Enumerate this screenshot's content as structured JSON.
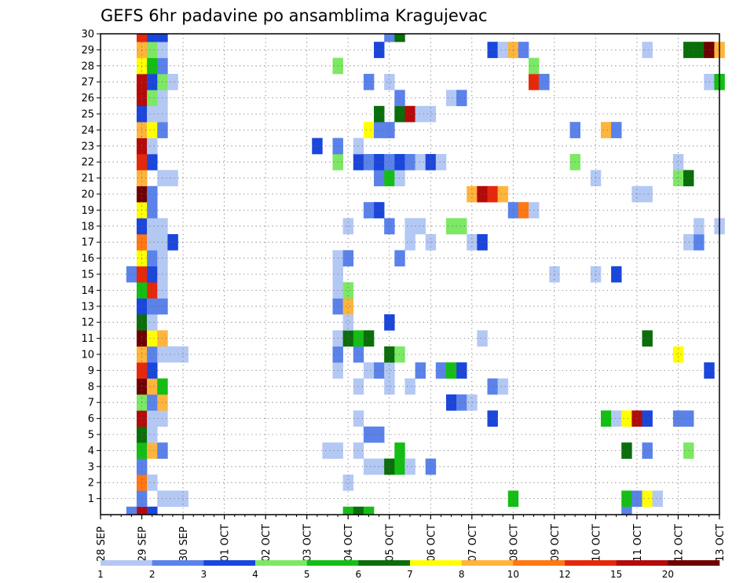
{
  "chart_data": {
    "type": "heatmap",
    "title": "GEFS 6hr padavine po ansamblima Kragujevac",
    "x_tick_labels": [
      "28 SEP",
      "29 SEP",
      "30 SEP",
      "01 OCT",
      "02 OCT",
      "03 OCT",
      "04 OCT",
      "05 OCT",
      "06 OCT",
      "07 OCT",
      "08 OCT",
      "09 OCT",
      "10 OCT",
      "11 OCT",
      "12 OCT",
      "13 OCT"
    ],
    "y_tick_labels": [
      "1",
      "2",
      "3",
      "4",
      "5",
      "6",
      "7",
      "8",
      "9",
      "10",
      "11",
      "12",
      "13",
      "14",
      "15",
      "16",
      "17",
      "18",
      "19",
      "20",
      "21",
      "22",
      "23",
      "24",
      "25",
      "26",
      "27",
      "28",
      "29",
      "30"
    ],
    "x_range_days": [
      0,
      15
    ],
    "y_range": [
      0,
      30
    ],
    "grid": true,
    "legend_placement": "bottom",
    "legend": {
      "labels": [
        "1",
        "2",
        "3",
        "4",
        "5",
        "6",
        "7",
        "8",
        "10",
        "12",
        "15",
        "20"
      ],
      "colors": [
        "#b4c8f4",
        "#5a82ea",
        "#1a46dc",
        "#7ce864",
        "#14be14",
        "#0a6e0a",
        "#ffff00",
        "#ffb43c",
        "#ff7814",
        "#e6280a",
        "#b40a0a",
        "#6e0000"
      ]
    },
    "cells": [
      {
        "m": 0,
        "d": 1.0,
        "c": 10
      },
      {
        "m": 0,
        "d": 1.25,
        "c": 2
      },
      {
        "m": 0,
        "d": 0.75,
        "c": 1
      },
      {
        "m": 0,
        "d": 6.0,
        "c": 4
      },
      {
        "m": 0,
        "d": 6.25,
        "c": 5
      },
      {
        "m": 0,
        "d": 6.5,
        "c": 4
      },
      {
        "m": 0,
        "d": 12.75,
        "c": 1
      },
      {
        "m": 1,
        "d": 1.0,
        "c": 1
      },
      {
        "m": 1,
        "d": 1.5,
        "c": 0
      },
      {
        "m": 1,
        "d": 1.75,
        "c": 0
      },
      {
        "m": 1,
        "d": 2.0,
        "c": 0
      },
      {
        "m": 1,
        "d": 10.0,
        "c": 4
      },
      {
        "m": 1,
        "d": 12.75,
        "c": 4
      },
      {
        "m": 1,
        "d": 13.0,
        "c": 1
      },
      {
        "m": 1,
        "d": 13.25,
        "c": 6
      },
      {
        "m": 1,
        "d": 13.5,
        "c": 0
      },
      {
        "m": 2,
        "d": 1.0,
        "c": 8
      },
      {
        "m": 2,
        "d": 1.25,
        "c": 0
      },
      {
        "m": 2,
        "d": 6.0,
        "c": 0
      },
      {
        "m": 3,
        "d": 1.0,
        "c": 1
      },
      {
        "m": 3,
        "d": 6.5,
        "c": 0
      },
      {
        "m": 3,
        "d": 6.75,
        "c": 0
      },
      {
        "m": 3,
        "d": 7.0,
        "c": 5
      },
      {
        "m": 3,
        "d": 7.25,
        "c": 4
      },
      {
        "m": 3,
        "d": 7.5,
        "c": 0
      },
      {
        "m": 3,
        "d": 8.0,
        "c": 1
      },
      {
        "m": 4,
        "d": 1.0,
        "c": 4
      },
      {
        "m": 4,
        "d": 1.25,
        "c": 7
      },
      {
        "m": 4,
        "d": 1.5,
        "c": 1
      },
      {
        "m": 4,
        "d": 5.5,
        "c": 0
      },
      {
        "m": 4,
        "d": 5.75,
        "c": 0
      },
      {
        "m": 4,
        "d": 6.25,
        "c": 0
      },
      {
        "m": 4,
        "d": 7.25,
        "c": 4
      },
      {
        "m": 4,
        "d": 12.75,
        "c": 5
      },
      {
        "m": 4,
        "d": 13.25,
        "c": 1
      },
      {
        "m": 4,
        "d": 14.25,
        "c": 3
      },
      {
        "m": 5,
        "d": 1.0,
        "c": 5
      },
      {
        "m": 5,
        "d": 1.25,
        "c": 0
      },
      {
        "m": 5,
        "d": 6.5,
        "c": 1
      },
      {
        "m": 5,
        "d": 6.75,
        "c": 1
      },
      {
        "m": 6,
        "d": 1.0,
        "c": 10
      },
      {
        "m": 6,
        "d": 1.25,
        "c": 0
      },
      {
        "m": 6,
        "d": 1.5,
        "c": 0
      },
      {
        "m": 6,
        "d": 6.25,
        "c": 0
      },
      {
        "m": 6,
        "d": 9.5,
        "c": 2
      },
      {
        "m": 6,
        "d": 12.25,
        "c": 4
      },
      {
        "m": 6,
        "d": 12.5,
        "c": 0
      },
      {
        "m": 6,
        "d": 12.75,
        "c": 6
      },
      {
        "m": 6,
        "d": 13.0,
        "c": 10
      },
      {
        "m": 6,
        "d": 13.25,
        "c": 2
      },
      {
        "m": 6,
        "d": 14.0,
        "c": 1
      },
      {
        "m": 6,
        "d": 14.25,
        "c": 1
      },
      {
        "m": 7,
        "d": 1.0,
        "c": 3
      },
      {
        "m": 7,
        "d": 1.25,
        "c": 1
      },
      {
        "m": 7,
        "d": 1.5,
        "c": 7
      },
      {
        "m": 7,
        "d": 8.5,
        "c": 2
      },
      {
        "m": 7,
        "d": 8.75,
        "c": 1
      },
      {
        "m": 7,
        "d": 9.0,
        "c": 0
      },
      {
        "m": 8,
        "d": 1.0,
        "c": 11
      },
      {
        "m": 8,
        "d": 1.25,
        "c": 7
      },
      {
        "m": 8,
        "d": 1.5,
        "c": 4
      },
      {
        "m": 8,
        "d": 6.25,
        "c": 0
      },
      {
        "m": 8,
        "d": 7.0,
        "c": 0
      },
      {
        "m": 8,
        "d": 7.5,
        "c": 0
      },
      {
        "m": 8,
        "d": 9.5,
        "c": 1
      },
      {
        "m": 8,
        "d": 9.75,
        "c": 0
      },
      {
        "m": 9,
        "d": 1.0,
        "c": 9
      },
      {
        "m": 9,
        "d": 1.25,
        "c": 2
      },
      {
        "m": 9,
        "d": 5.75,
        "c": 0
      },
      {
        "m": 9,
        "d": 6.5,
        "c": 0
      },
      {
        "m": 9,
        "d": 6.75,
        "c": 1
      },
      {
        "m": 9,
        "d": 7.0,
        "c": 0
      },
      {
        "m": 9,
        "d": 7.75,
        "c": 1
      },
      {
        "m": 9,
        "d": 8.25,
        "c": 1
      },
      {
        "m": 9,
        "d": 8.5,
        "c": 4
      },
      {
        "m": 9,
        "d": 8.75,
        "c": 2
      },
      {
        "m": 9,
        "d": 14.75,
        "c": 2
      },
      {
        "m": 10,
        "d": 1.0,
        "c": 7
      },
      {
        "m": 10,
        "d": 1.25,
        "c": 1
      },
      {
        "m": 10,
        "d": 1.5,
        "c": 0
      },
      {
        "m": 10,
        "d": 1.75,
        "c": 0
      },
      {
        "m": 10,
        "d": 2.0,
        "c": 0
      },
      {
        "m": 10,
        "d": 5.75,
        "c": 1
      },
      {
        "m": 10,
        "d": 6.25,
        "c": 1
      },
      {
        "m": 10,
        "d": 7.0,
        "c": 5
      },
      {
        "m": 10,
        "d": 7.25,
        "c": 3
      },
      {
        "m": 10,
        "d": 14.0,
        "c": 6
      },
      {
        "m": 11,
        "d": 1.0,
        "c": 11
      },
      {
        "m": 11,
        "d": 1.25,
        "c": 6
      },
      {
        "m": 11,
        "d": 1.5,
        "c": 7
      },
      {
        "m": 11,
        "d": 5.75,
        "c": 0
      },
      {
        "m": 11,
        "d": 6.0,
        "c": 5
      },
      {
        "m": 11,
        "d": 6.25,
        "c": 4
      },
      {
        "m": 11,
        "d": 6.5,
        "c": 5
      },
      {
        "m": 11,
        "d": 9.25,
        "c": 0
      },
      {
        "m": 11,
        "d": 13.25,
        "c": 5
      },
      {
        "m": 12,
        "d": 1.0,
        "c": 5
      },
      {
        "m": 12,
        "d": 1.25,
        "c": 0
      },
      {
        "m": 12,
        "d": 6.0,
        "c": 0
      },
      {
        "m": 12,
        "d": 7.0,
        "c": 2
      },
      {
        "m": 13,
        "d": 1.0,
        "c": 2
      },
      {
        "m": 13,
        "d": 1.25,
        "c": 1
      },
      {
        "m": 13,
        "d": 1.5,
        "c": 1
      },
      {
        "m": 13,
        "d": 5.75,
        "c": 1
      },
      {
        "m": 13,
        "d": 6.0,
        "c": 7
      },
      {
        "m": 14,
        "d": 1.0,
        "c": 4
      },
      {
        "m": 14,
        "d": 1.25,
        "c": 9
      },
      {
        "m": 14,
        "d": 1.5,
        "c": 0
      },
      {
        "m": 14,
        "d": 5.75,
        "c": 0
      },
      {
        "m": 14,
        "d": 6.0,
        "c": 3
      },
      {
        "m": 15,
        "d": 0.75,
        "c": 1
      },
      {
        "m": 15,
        "d": 1.0,
        "c": 9
      },
      {
        "m": 15,
        "d": 1.25,
        "c": 2
      },
      {
        "m": 15,
        "d": 1.5,
        "c": 0
      },
      {
        "m": 15,
        "d": 5.75,
        "c": 0
      },
      {
        "m": 15,
        "d": 11.0,
        "c": 0
      },
      {
        "m": 15,
        "d": 12.0,
        "c": 0
      },
      {
        "m": 15,
        "d": 12.5,
        "c": 2
      },
      {
        "m": 16,
        "d": 1.0,
        "c": 6
      },
      {
        "m": 16,
        "d": 1.25,
        "c": 1
      },
      {
        "m": 16,
        "d": 1.5,
        "c": 0
      },
      {
        "m": 16,
        "d": 5.75,
        "c": 0
      },
      {
        "m": 16,
        "d": 6.0,
        "c": 1
      },
      {
        "m": 16,
        "d": 7.25,
        "c": 1
      },
      {
        "m": 17,
        "d": 1.0,
        "c": 8
      },
      {
        "m": 17,
        "d": 1.25,
        "c": 0
      },
      {
        "m": 17,
        "d": 1.5,
        "c": 0
      },
      {
        "m": 17,
        "d": 1.75,
        "c": 2
      },
      {
        "m": 17,
        "d": 7.5,
        "c": 0
      },
      {
        "m": 17,
        "d": 8.0,
        "c": 0
      },
      {
        "m": 17,
        "d": 9.0,
        "c": 0
      },
      {
        "m": 17,
        "d": 9.25,
        "c": 2
      },
      {
        "m": 17,
        "d": 14.25,
        "c": 0
      },
      {
        "m": 17,
        "d": 14.5,
        "c": 1
      },
      {
        "m": 18,
        "d": 1.0,
        "c": 2
      },
      {
        "m": 18,
        "d": 1.25,
        "c": 0
      },
      {
        "m": 18,
        "d": 1.5,
        "c": 0
      },
      {
        "m": 18,
        "d": 6.0,
        "c": 0
      },
      {
        "m": 18,
        "d": 7.0,
        "c": 1
      },
      {
        "m": 18,
        "d": 7.5,
        "c": 0
      },
      {
        "m": 18,
        "d": 7.75,
        "c": 0
      },
      {
        "m": 18,
        "d": 8.5,
        "c": 3
      },
      {
        "m": 18,
        "d": 8.75,
        "c": 3
      },
      {
        "m": 18,
        "d": 14.5,
        "c": 0
      },
      {
        "m": 18,
        "d": 15.0,
        "c": 0
      },
      {
        "m": 19,
        "d": 1.0,
        "c": 6
      },
      {
        "m": 19,
        "d": 1.25,
        "c": 1
      },
      {
        "m": 19,
        "d": 6.5,
        "c": 1
      },
      {
        "m": 19,
        "d": 6.75,
        "c": 2
      },
      {
        "m": 19,
        "d": 10.0,
        "c": 1
      },
      {
        "m": 19,
        "d": 10.25,
        "c": 8
      },
      {
        "m": 19,
        "d": 10.5,
        "c": 0
      },
      {
        "m": 20,
        "d": 1.0,
        "c": 11
      },
      {
        "m": 20,
        "d": 1.25,
        "c": 1
      },
      {
        "m": 20,
        "d": 9.0,
        "c": 7
      },
      {
        "m": 20,
        "d": 9.25,
        "c": 10
      },
      {
        "m": 20,
        "d": 9.5,
        "c": 9
      },
      {
        "m": 20,
        "d": 9.75,
        "c": 7
      },
      {
        "m": 20,
        "d": 13.0,
        "c": 0
      },
      {
        "m": 20,
        "d": 13.25,
        "c": 0
      },
      {
        "m": 21,
        "d": 1.0,
        "c": 7
      },
      {
        "m": 21,
        "d": 1.5,
        "c": 0
      },
      {
        "m": 21,
        "d": 1.75,
        "c": 0
      },
      {
        "m": 21,
        "d": 6.75,
        "c": 1
      },
      {
        "m": 21,
        "d": 7.0,
        "c": 4
      },
      {
        "m": 21,
        "d": 7.25,
        "c": 0
      },
      {
        "m": 21,
        "d": 12.0,
        "c": 0
      },
      {
        "m": 21,
        "d": 14.0,
        "c": 3
      },
      {
        "m": 21,
        "d": 14.25,
        "c": 5
      },
      {
        "m": 22,
        "d": 1.0,
        "c": 9
      },
      {
        "m": 22,
        "d": 1.25,
        "c": 2
      },
      {
        "m": 22,
        "d": 5.75,
        "c": 3
      },
      {
        "m": 22,
        "d": 6.25,
        "c": 2
      },
      {
        "m": 22,
        "d": 6.5,
        "c": 1
      },
      {
        "m": 22,
        "d": 6.75,
        "c": 2
      },
      {
        "m": 22,
        "d": 7.0,
        "c": 1
      },
      {
        "m": 22,
        "d": 7.25,
        "c": 2
      },
      {
        "m": 22,
        "d": 7.5,
        "c": 1
      },
      {
        "m": 22,
        "d": 7.75,
        "c": 0
      },
      {
        "m": 22,
        "d": 8.0,
        "c": 2
      },
      {
        "m": 22,
        "d": 8.25,
        "c": 0
      },
      {
        "m": 22,
        "d": 11.5,
        "c": 3
      },
      {
        "m": 22,
        "d": 14.0,
        "c": 0
      },
      {
        "m": 23,
        "d": 1.0,
        "c": 10
      },
      {
        "m": 23,
        "d": 1.25,
        "c": 0
      },
      {
        "m": 23,
        "d": 5.25,
        "c": 2
      },
      {
        "m": 23,
        "d": 5.75,
        "c": 1
      },
      {
        "m": 23,
        "d": 6.25,
        "c": 0
      },
      {
        "m": 24,
        "d": 1.0,
        "c": 7
      },
      {
        "m": 24,
        "d": 1.25,
        "c": 6
      },
      {
        "m": 24,
        "d": 1.5,
        "c": 1
      },
      {
        "m": 24,
        "d": 6.5,
        "c": 6
      },
      {
        "m": 24,
        "d": 6.75,
        "c": 1
      },
      {
        "m": 24,
        "d": 7.0,
        "c": 1
      },
      {
        "m": 24,
        "d": 11.5,
        "c": 1
      },
      {
        "m": 24,
        "d": 12.25,
        "c": 7
      },
      {
        "m": 24,
        "d": 12.5,
        "c": 1
      },
      {
        "m": 25,
        "d": 1.0,
        "c": 2
      },
      {
        "m": 25,
        "d": 1.25,
        "c": 0
      },
      {
        "m": 25,
        "d": 1.5,
        "c": 0
      },
      {
        "m": 25,
        "d": 6.75,
        "c": 5
      },
      {
        "m": 25,
        "d": 7.25,
        "c": 5
      },
      {
        "m": 25,
        "d": 7.5,
        "c": 10
      },
      {
        "m": 25,
        "d": 7.75,
        "c": 0
      },
      {
        "m": 25,
        "d": 8.0,
        "c": 0
      },
      {
        "m": 26,
        "d": 1.0,
        "c": 10
      },
      {
        "m": 26,
        "d": 1.25,
        "c": 3
      },
      {
        "m": 26,
        "d": 1.5,
        "c": 0
      },
      {
        "m": 26,
        "d": 7.25,
        "c": 1
      },
      {
        "m": 26,
        "d": 8.5,
        "c": 0
      },
      {
        "m": 26,
        "d": 8.75,
        "c": 1
      },
      {
        "m": 27,
        "d": 1.0,
        "c": 10
      },
      {
        "m": 27,
        "d": 1.25,
        "c": 2
      },
      {
        "m": 27,
        "d": 1.5,
        "c": 3
      },
      {
        "m": 27,
        "d": 1.75,
        "c": 0
      },
      {
        "m": 27,
        "d": 6.5,
        "c": 1
      },
      {
        "m": 27,
        "d": 7.0,
        "c": 0
      },
      {
        "m": 27,
        "d": 10.5,
        "c": 9
      },
      {
        "m": 27,
        "d": 10.75,
        "c": 1
      },
      {
        "m": 27,
        "d": 14.75,
        "c": 0
      },
      {
        "m": 27,
        "d": 15.0,
        "c": 4
      },
      {
        "m": 28,
        "d": 1.0,
        "c": 6
      },
      {
        "m": 28,
        "d": 1.25,
        "c": 4
      },
      {
        "m": 28,
        "d": 1.5,
        "c": 1
      },
      {
        "m": 28,
        "d": 5.75,
        "c": 3
      },
      {
        "m": 28,
        "d": 10.5,
        "c": 3
      },
      {
        "m": 29,
        "d": 1.0,
        "c": 7
      },
      {
        "m": 29,
        "d": 1.25,
        "c": 3
      },
      {
        "m": 29,
        "d": 1.5,
        "c": 0
      },
      {
        "m": 29,
        "d": 6.75,
        "c": 2
      },
      {
        "m": 29,
        "d": 9.5,
        "c": 2
      },
      {
        "m": 29,
        "d": 9.75,
        "c": 0
      },
      {
        "m": 29,
        "d": 10.0,
        "c": 7
      },
      {
        "m": 29,
        "d": 10.25,
        "c": 1
      },
      {
        "m": 29,
        "d": 13.25,
        "c": 0
      },
      {
        "m": 29,
        "d": 14.25,
        "c": 5
      },
      {
        "m": 29,
        "d": 14.5,
        "c": 5
      },
      {
        "m": 29,
        "d": 14.75,
        "c": 11
      },
      {
        "m": 29,
        "d": 15.0,
        "c": 7
      },
      {
        "m": 30,
        "d": 1.0,
        "c": 9
      },
      {
        "m": 30,
        "d": 1.25,
        "c": 2
      },
      {
        "m": 30,
        "d": 1.5,
        "c": 2
      },
      {
        "m": 30,
        "d": 7.0,
        "c": 1
      },
      {
        "m": 30,
        "d": 7.25,
        "c": 5
      }
    ]
  }
}
